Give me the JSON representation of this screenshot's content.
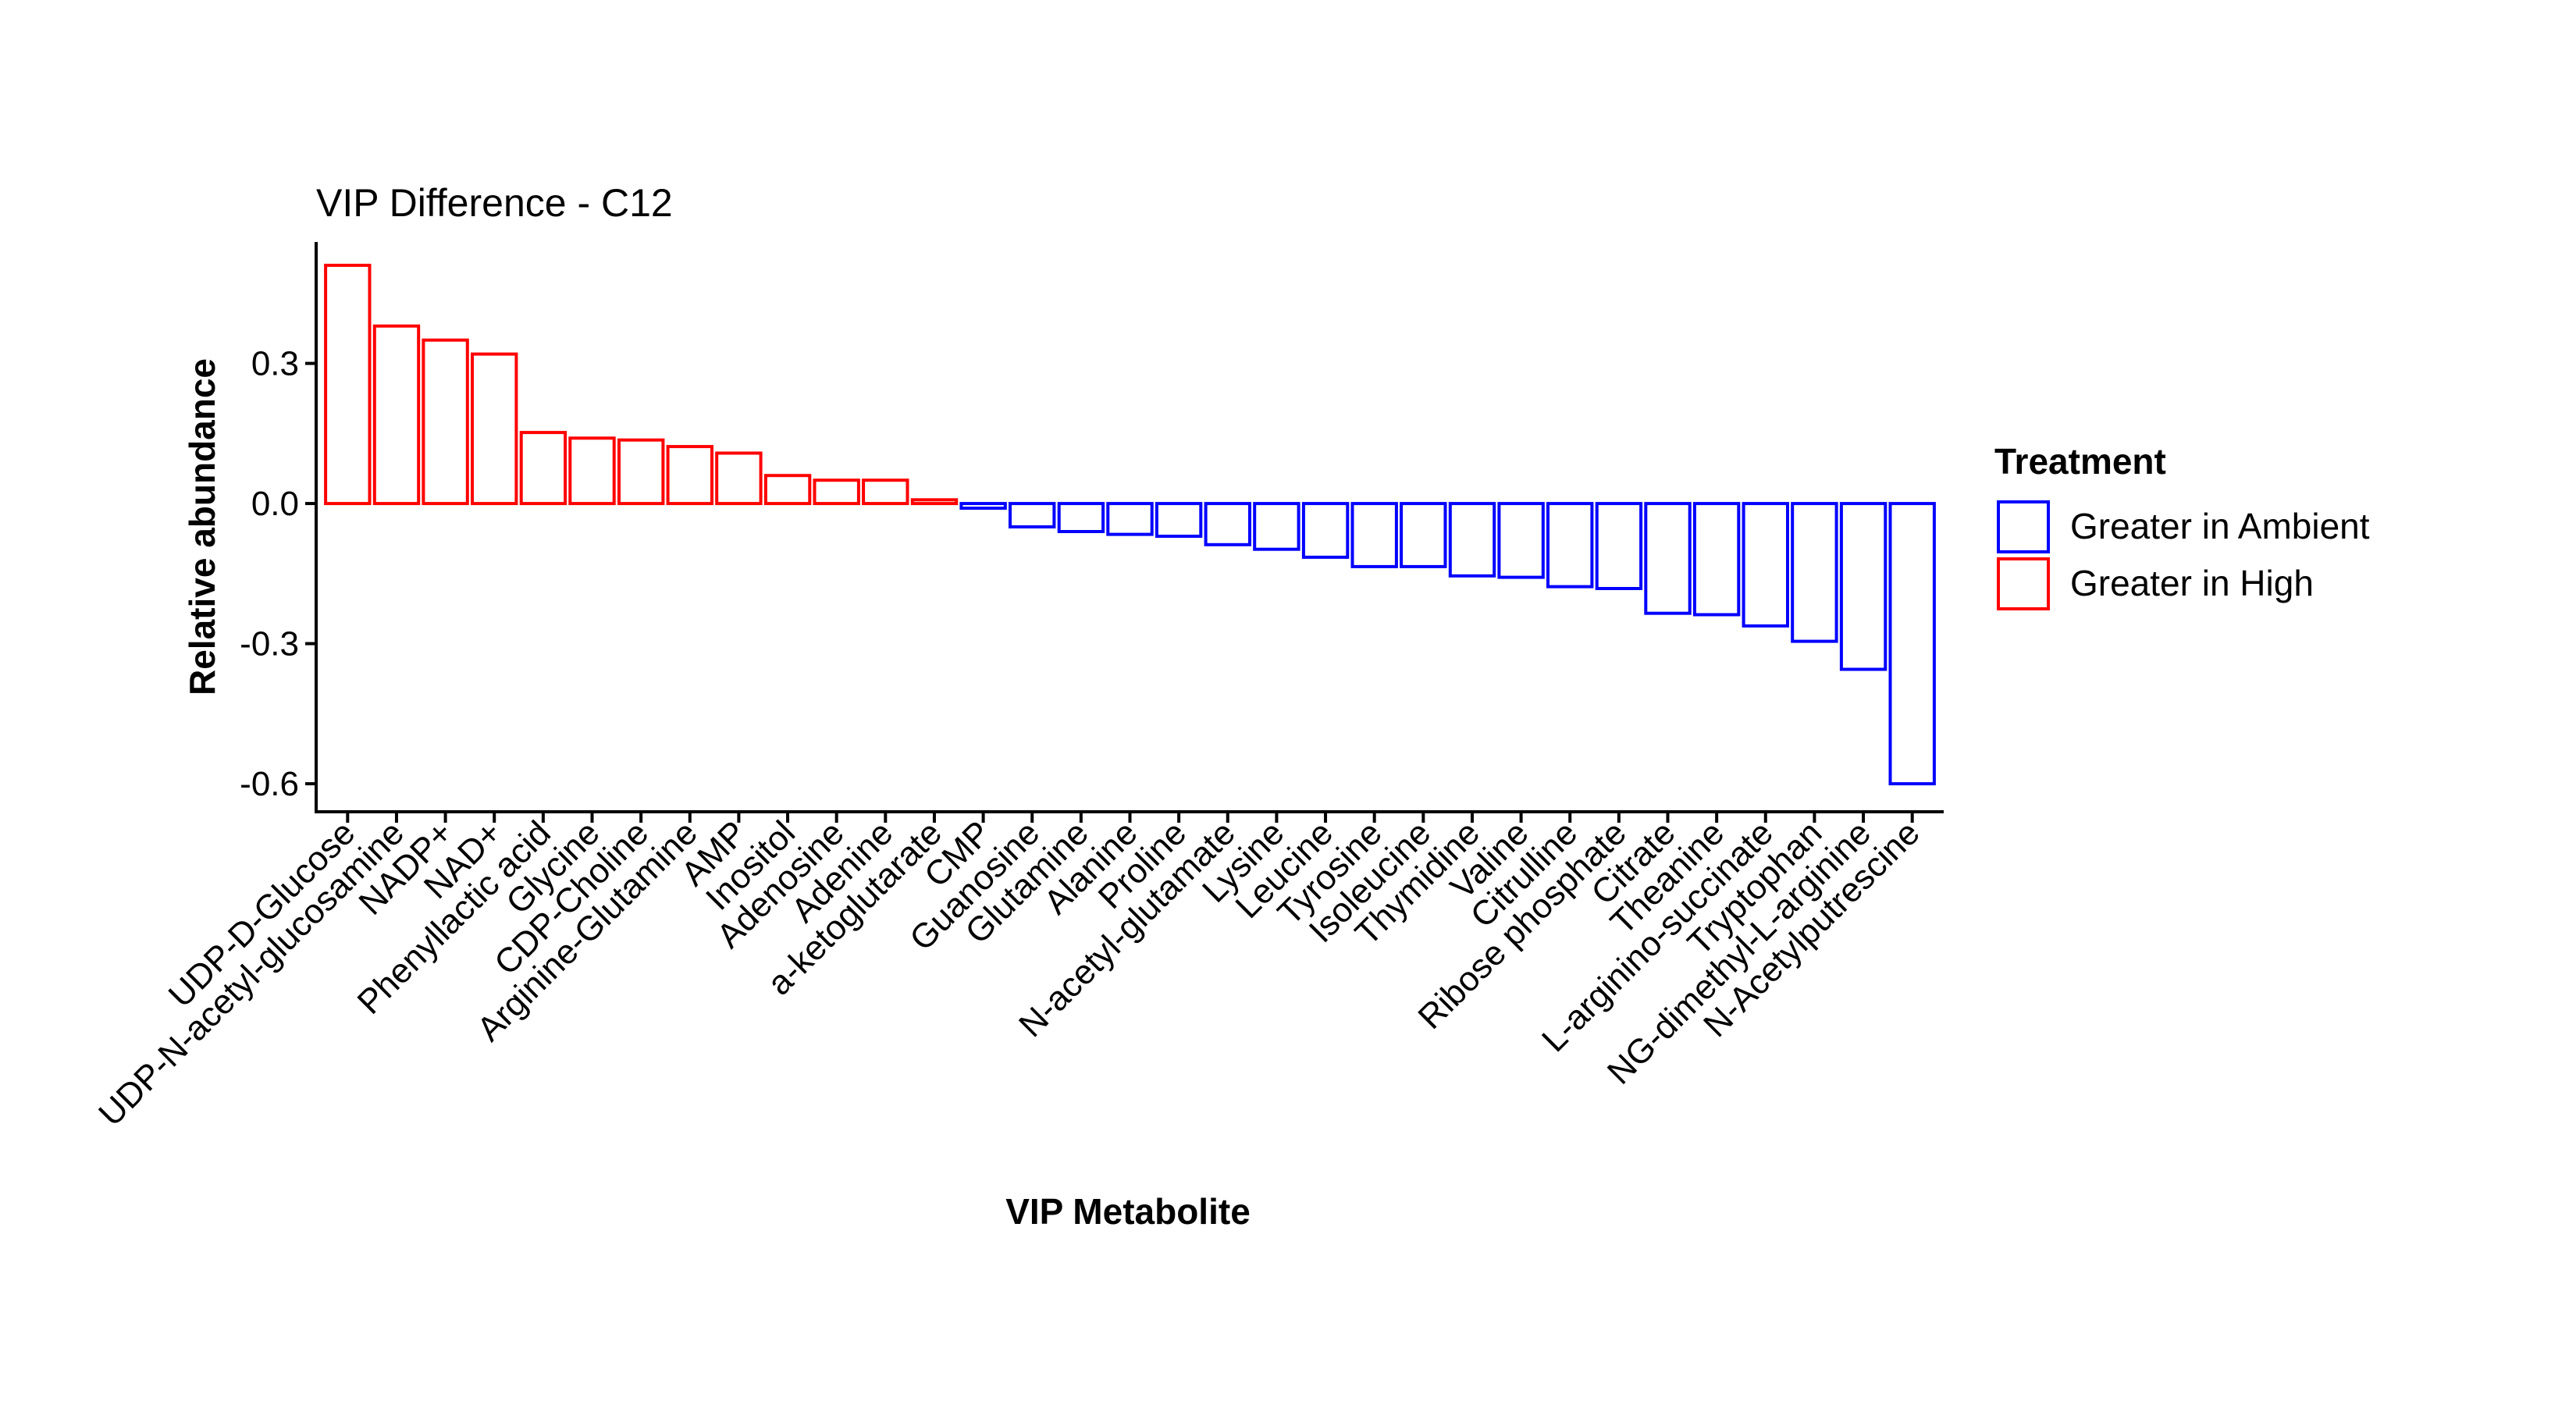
{
  "chart_data": {
    "type": "bar",
    "title": "VIP Difference - C12",
    "xlabel": "VIP Metabolite",
    "ylabel": "Relative abundance",
    "ylim": [
      -0.66,
      0.56
    ],
    "yticks": [
      0.3,
      0.0,
      -0.3,
      -0.6
    ],
    "ytick_labels": [
      "0.3",
      "0.0",
      "-0.3",
      "-0.6"
    ],
    "grid": false,
    "legend_position": "right",
    "legend": {
      "title": "Treatment",
      "entries": [
        {
          "label": "Greater in Ambient",
          "color": "#0000ff"
        },
        {
          "label": "Greater in High",
          "color": "#ff0000"
        }
      ]
    },
    "categories": [
      "UDP-D-Glucose",
      "UDP-N-acetyl-glucosamine",
      "NADP+",
      "NAD+",
      "Phenyllactic acid",
      "Glycine",
      "CDP-Choline",
      "Arginine-Glutamine",
      "AMP",
      "Inositol",
      "Adenosine",
      "Adenine",
      "a-ketoglutarate",
      "CMP",
      "Guanosine",
      "Glutamine",
      "Alanine",
      "Proline",
      "N-acetyl-glutamate",
      "Lysine",
      "Leucine",
      "Tyrosine",
      "Isoleucine",
      "Thymidine",
      "Valine",
      "Citrulline",
      "Ribose phosphate",
      "Citrate",
      "Theanine",
      "L-arginino-succinate",
      "Tryptophan",
      "NG-dimethyl-L-arginine",
      "N-Acetylputrescine"
    ],
    "values": [
      0.51,
      0.38,
      0.35,
      0.32,
      0.152,
      0.14,
      0.136,
      0.122,
      0.108,
      0.06,
      0.05,
      0.05,
      0.008,
      -0.01,
      -0.05,
      -0.06,
      -0.066,
      -0.07,
      -0.088,
      -0.098,
      -0.115,
      -0.135,
      -0.135,
      -0.155,
      -0.158,
      -0.178,
      -0.182,
      -0.235,
      -0.238,
      -0.262,
      -0.295,
      -0.355,
      -0.6
    ],
    "treatment": [
      "Greater in High",
      "Greater in High",
      "Greater in High",
      "Greater in High",
      "Greater in High",
      "Greater in High",
      "Greater in High",
      "Greater in High",
      "Greater in High",
      "Greater in High",
      "Greater in High",
      "Greater in High",
      "Greater in High",
      "Greater in Ambient",
      "Greater in Ambient",
      "Greater in Ambient",
      "Greater in Ambient",
      "Greater in Ambient",
      "Greater in Ambient",
      "Greater in Ambient",
      "Greater in Ambient",
      "Greater in Ambient",
      "Greater in Ambient",
      "Greater in Ambient",
      "Greater in Ambient",
      "Greater in Ambient",
      "Greater in Ambient",
      "Greater in Ambient",
      "Greater in Ambient",
      "Greater in Ambient",
      "Greater in Ambient",
      "Greater in Ambient",
      "Greater in Ambient"
    ]
  }
}
